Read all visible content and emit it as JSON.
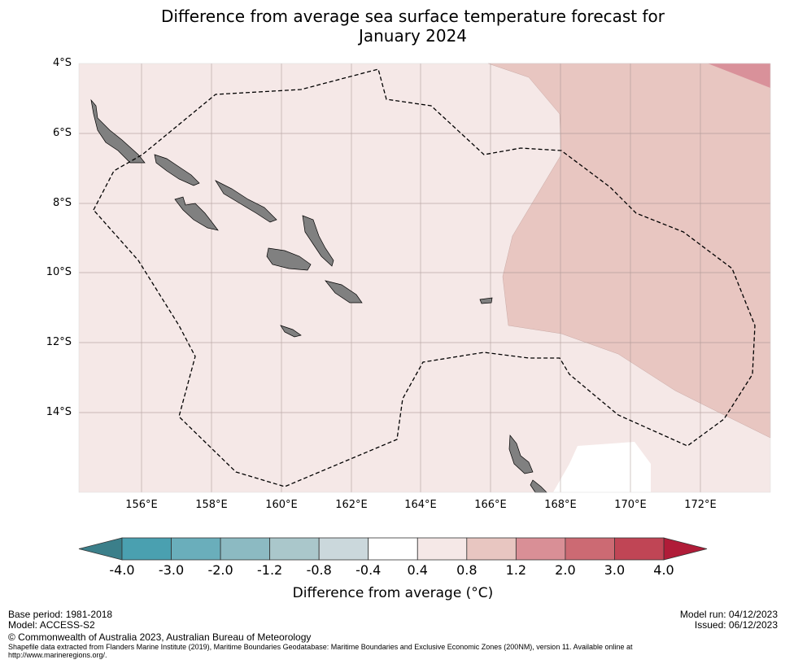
{
  "title_line1": "Difference from average sea surface temperature forecast for",
  "title_line2": "January 2024",
  "map": {
    "lat_labels": [
      "4°S",
      "6°S",
      "8°S",
      "10°S",
      "12°S",
      "14°S"
    ],
    "lon_labels": [
      "156°E",
      "158°E",
      "160°E",
      "162°E",
      "164°E",
      "166°E",
      "168°E",
      "170°E",
      "172°E"
    ]
  },
  "colorbar": {
    "title": "Difference from average (°C)",
    "ticks": [
      "-4.0",
      "-3.0",
      "-2.0",
      "-1.2",
      "-0.8",
      "-0.4",
      "0.4",
      "0.8",
      "1.2",
      "2.0",
      "3.0",
      "4.0"
    ],
    "colors": [
      "#4aa0b0",
      "#6aaebb",
      "#8cbac2",
      "#aac7cb",
      "#cbd8dc",
      "#ffffff",
      "#f5e8e7",
      "#e8c6c1",
      "#d98f96",
      "#cc6a73",
      "#c04555"
    ],
    "under_color": "#3b7f8a",
    "over_color": "#b01c38"
  },
  "footer": {
    "base_period": "Base period: 1981-2018",
    "model": "Model: ACCESS-S2",
    "model_run": "Model run: 04/12/2023",
    "issued": "Issued: 06/12/2023",
    "copyright": "© Commonwealth of Australia 2023, Australian Bureau of Meteorology",
    "shapefile_line1": "Shapefile data extracted from Flanders Marine Institute (2019), Maritime Boundaries Geodatabase: Maritime Boundaries and Exclusive Economic Zones (200NM), version 11. Available online at",
    "shapefile_line2": "http://www.marineregions.org/."
  }
}
